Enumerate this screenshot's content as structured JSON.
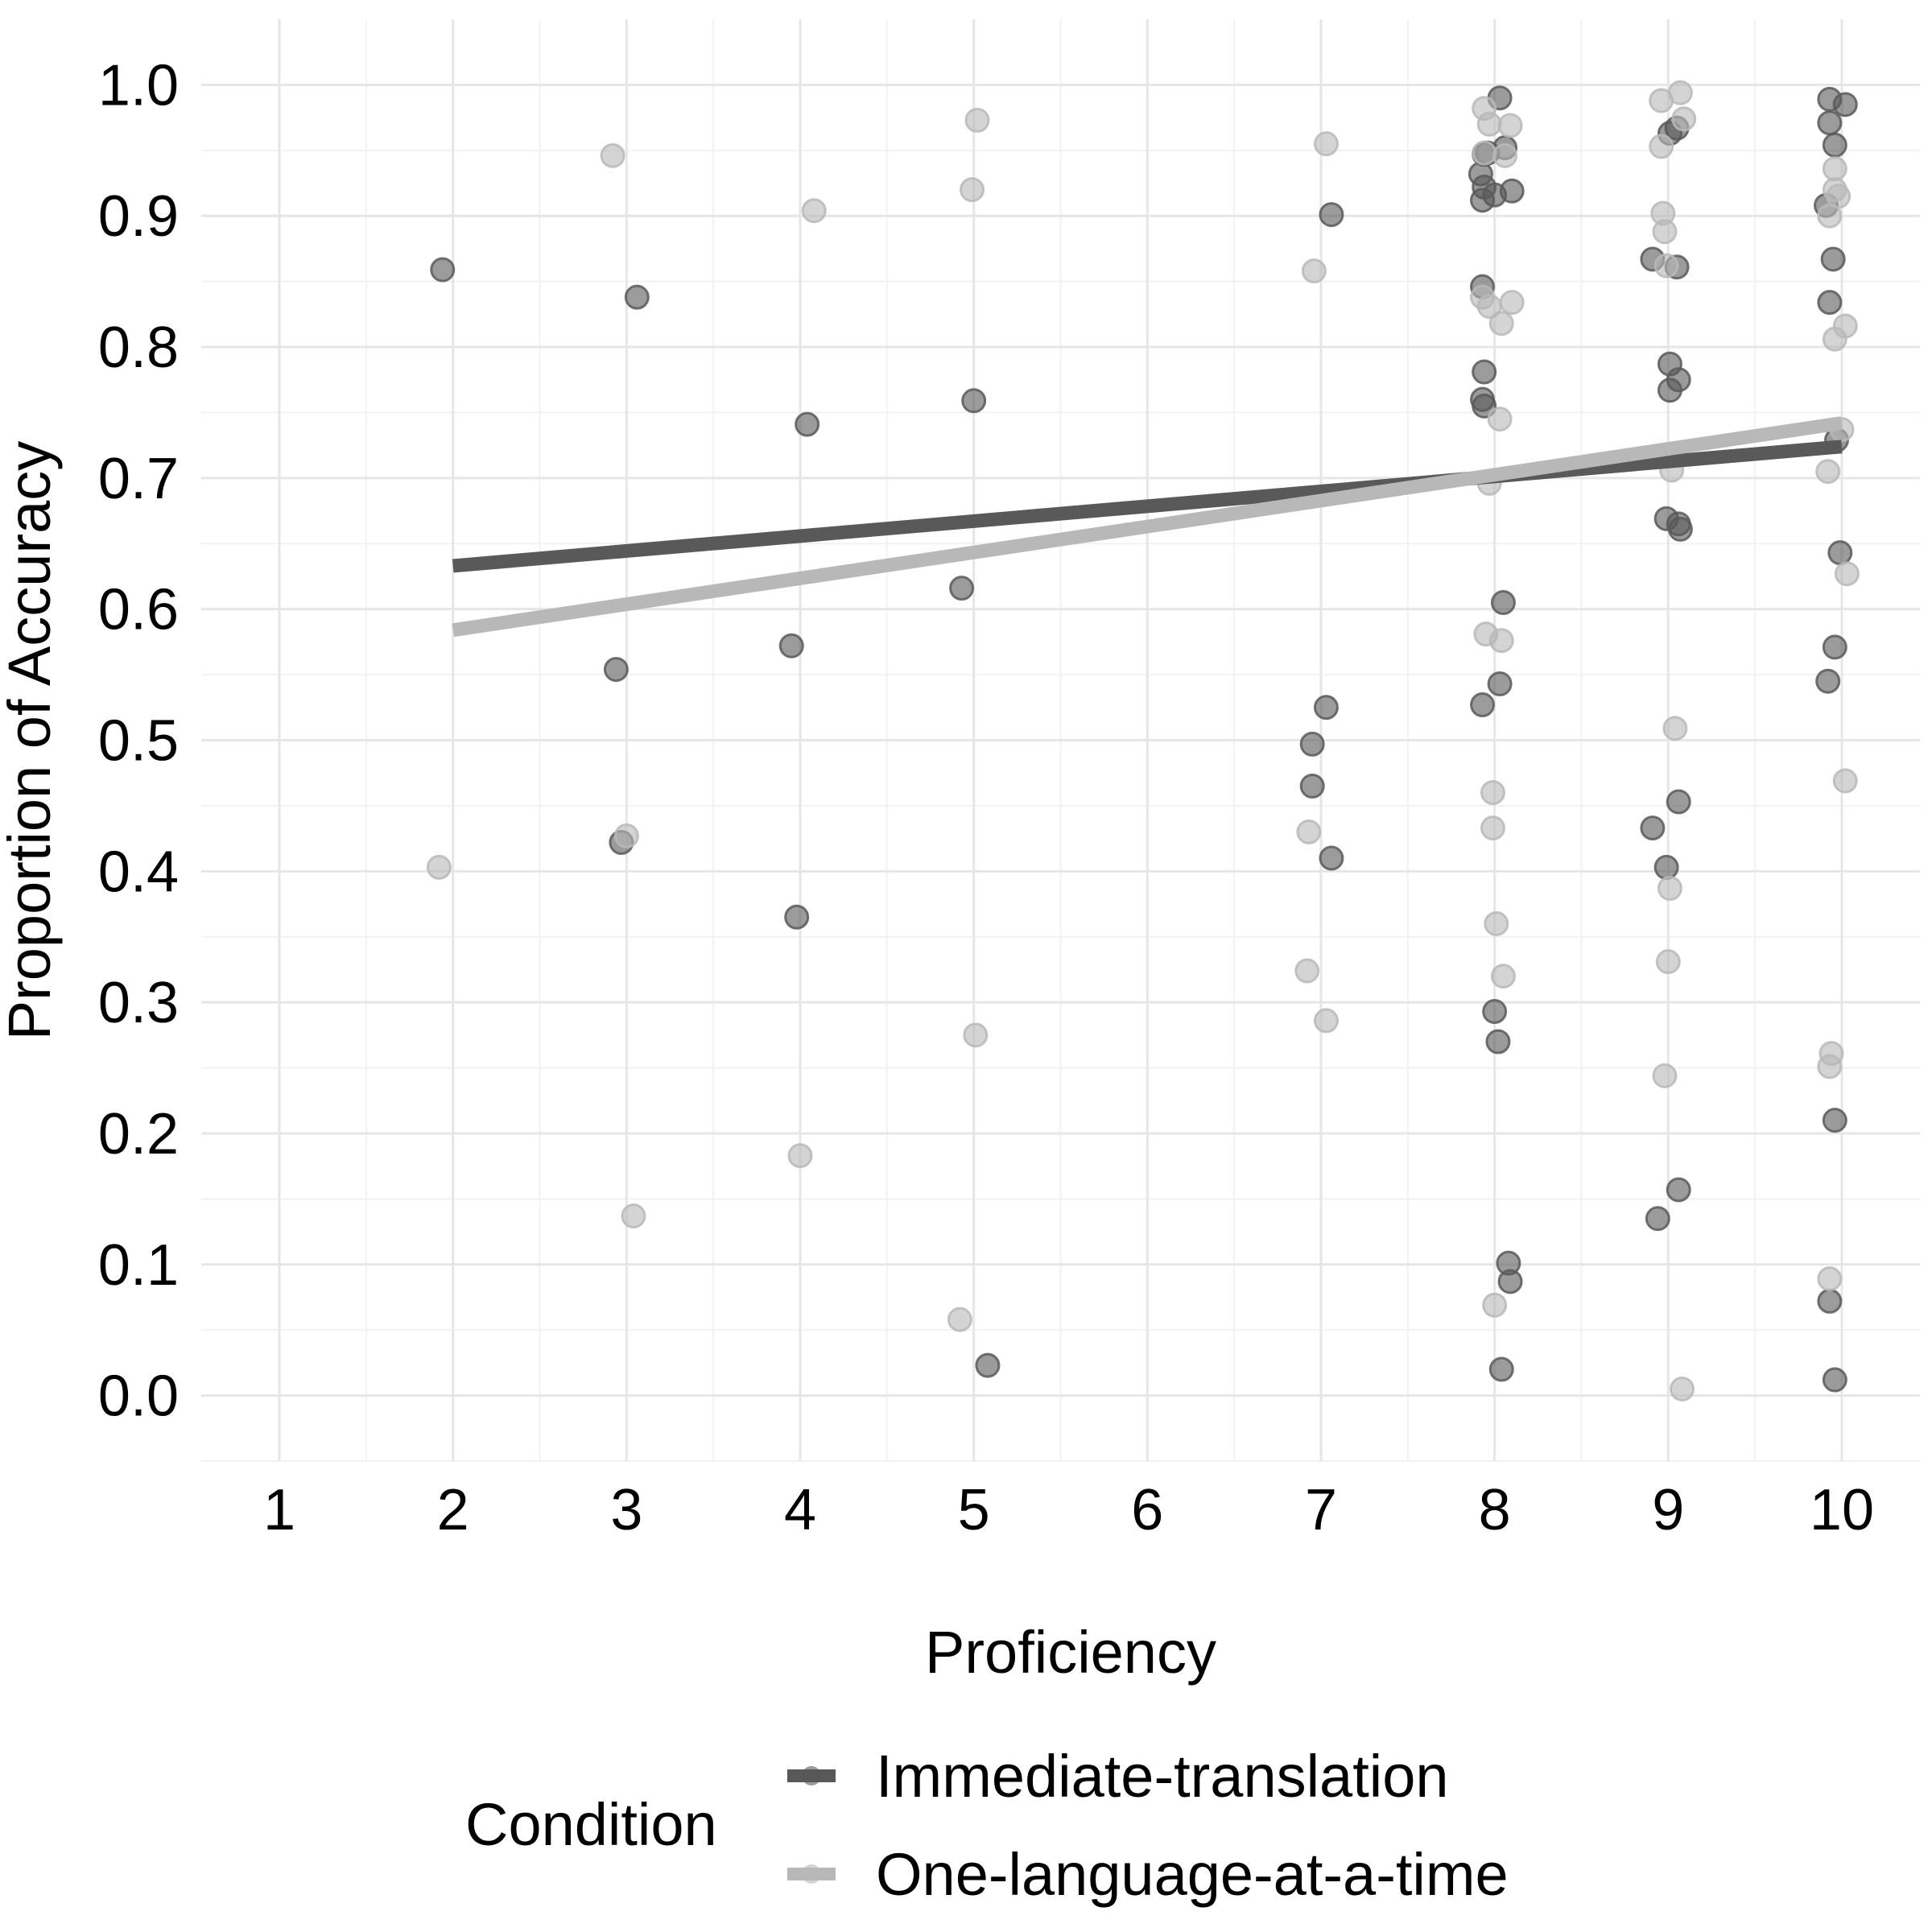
{
  "chart_data": {
    "type": "scatter",
    "xlabel": "Proficiency",
    "ylabel": "Proportion of Accuracy",
    "xlim": [
      0.55,
      10.45
    ],
    "ylim": [
      -0.05,
      1.05
    ],
    "x_ticks": [
      1,
      2,
      3,
      4,
      5,
      6,
      7,
      8,
      9,
      10
    ],
    "x_tick_labels": [
      "1",
      "2",
      "3",
      "4",
      "5",
      "6",
      "7",
      "8",
      "9",
      "10"
    ],
    "y_ticks": [
      0.0,
      0.1,
      0.2,
      0.3,
      0.4,
      0.5,
      0.6,
      0.7,
      0.8,
      0.9,
      1.0
    ],
    "y_tick_labels": [
      "0.0",
      "0.1",
      "0.2",
      "0.3",
      "0.4",
      "0.5",
      "0.6",
      "0.7",
      "0.8",
      "0.9",
      "1.0"
    ],
    "grid": true,
    "legend": {
      "title": "Condition",
      "position": "bottom"
    },
    "series": [
      {
        "name": "Immediate-translation",
        "color": "#595959",
        "line": [
          [
            2,
            0.633
          ],
          [
            10,
            0.724
          ]
        ],
        "points": [
          [
            1.94,
            0.859
          ],
          [
            3.06,
            0.838
          ],
          [
            2.94,
            0.554
          ],
          [
            2.97,
            0.422
          ],
          [
            4.04,
            0.741
          ],
          [
            3.95,
            0.572
          ],
          [
            3.98,
            0.365
          ],
          [
            5.0,
            0.759
          ],
          [
            4.93,
            0.616
          ],
          [
            5.08,
            0.023
          ],
          [
            7.06,
            0.901
          ],
          [
            7.03,
            0.525
          ],
          [
            6.95,
            0.497
          ],
          [
            6.95,
            0.465
          ],
          [
            7.06,
            0.41
          ],
          [
            8.03,
            0.99
          ],
          [
            7.94,
            0.947
          ],
          [
            7.96,
            0.948
          ],
          [
            8.06,
            0.952
          ],
          [
            7.92,
            0.932
          ],
          [
            7.94,
            0.922
          ],
          [
            8.0,
            0.916
          ],
          [
            8.1,
            0.919
          ],
          [
            7.93,
            0.912
          ],
          [
            7.93,
            0.846
          ],
          [
            7.94,
            0.781
          ],
          [
            7.93,
            0.76
          ],
          [
            7.94,
            0.755
          ],
          [
            8.05,
            0.605
          ],
          [
            8.03,
            0.543
          ],
          [
            7.93,
            0.527
          ],
          [
            8.0,
            0.293
          ],
          [
            8.02,
            0.27
          ],
          [
            8.08,
            0.101
          ],
          [
            8.09,
            0.087
          ],
          [
            8.04,
            0.02
          ],
          [
            9.05,
            0.967
          ],
          [
            9.01,
            0.963
          ],
          [
            8.91,
            0.867
          ],
          [
            9.05,
            0.861
          ],
          [
            9.01,
            0.787
          ],
          [
            9.06,
            0.775
          ],
          [
            9.01,
            0.767
          ],
          [
            8.99,
            0.669
          ],
          [
            9.06,
            0.665
          ],
          [
            9.07,
            0.661
          ],
          [
            9.06,
            0.453
          ],
          [
            8.91,
            0.433
          ],
          [
            8.99,
            0.403
          ],
          [
            9.06,
            0.157
          ],
          [
            8.94,
            0.135
          ],
          [
            9.93,
            0.989
          ],
          [
            10.02,
            0.985
          ],
          [
            9.93,
            0.971
          ],
          [
            9.96,
            0.954
          ],
          [
            9.91,
            0.908
          ],
          [
            9.95,
            0.867
          ],
          [
            9.93,
            0.834
          ],
          [
            9.97,
            0.729
          ],
          [
            9.99,
            0.643
          ],
          [
            9.96,
            0.571
          ],
          [
            9.92,
            0.545
          ],
          [
            9.96,
            0.21
          ],
          [
            9.93,
            0.072
          ],
          [
            9.96,
            0.012
          ]
        ]
      },
      {
        "name": "One-language-at-a-time",
        "color": "#b8b8b8",
        "line": [
          [
            2,
            0.584
          ],
          [
            10,
            0.742
          ]
        ],
        "points": [
          [
            1.92,
            0.403
          ],
          [
            2.92,
            0.946
          ],
          [
            3.0,
            0.427
          ],
          [
            3.04,
            0.137
          ],
          [
            4.08,
            0.904
          ],
          [
            4.0,
            0.183
          ],
          [
            5.02,
            0.973
          ],
          [
            4.99,
            0.92
          ],
          [
            5.01,
            0.275
          ],
          [
            4.92,
            0.058
          ],
          [
            7.03,
            0.955
          ],
          [
            6.96,
            0.858
          ],
          [
            6.93,
            0.43
          ],
          [
            6.92,
            0.324
          ],
          [
            7.03,
            0.286
          ],
          [
            7.94,
            0.982
          ],
          [
            7.97,
            0.97
          ],
          [
            8.09,
            0.969
          ],
          [
            7.94,
            0.948
          ],
          [
            8.06,
            0.946
          ],
          [
            7.93,
            0.838
          ],
          [
            7.97,
            0.831
          ],
          [
            8.1,
            0.834
          ],
          [
            8.04,
            0.818
          ],
          [
            8.03,
            0.745
          ],
          [
            7.97,
            0.696
          ],
          [
            7.95,
            0.581
          ],
          [
            8.04,
            0.576
          ],
          [
            7.99,
            0.46
          ],
          [
            7.99,
            0.433
          ],
          [
            8.01,
            0.36
          ],
          [
            8.05,
            0.32
          ],
          [
            8.0,
            0.069
          ],
          [
            8.96,
            0.988
          ],
          [
            9.07,
            0.994
          ],
          [
            9.09,
            0.974
          ],
          [
            8.96,
            0.953
          ],
          [
            8.97,
            0.902
          ],
          [
            8.98,
            0.888
          ],
          [
            8.99,
            0.862
          ],
          [
            9.02,
            0.706
          ],
          [
            9.04,
            0.509
          ],
          [
            9.01,
            0.387
          ],
          [
            9.0,
            0.331
          ],
          [
            8.98,
            0.244
          ],
          [
            9.08,
            0.005
          ],
          [
            9.96,
            0.936
          ],
          [
            9.96,
            0.92
          ],
          [
            9.98,
            0.915
          ],
          [
            9.93,
            0.9
          ],
          [
            10.02,
            0.816
          ],
          [
            9.96,
            0.806
          ],
          [
            10.0,
            0.737
          ],
          [
            9.92,
            0.705
          ],
          [
            10.03,
            0.627
          ],
          [
            10.02,
            0.469
          ],
          [
            9.94,
            0.261
          ],
          [
            9.93,
            0.251
          ],
          [
            9.93,
            0.089
          ]
        ]
      }
    ]
  }
}
